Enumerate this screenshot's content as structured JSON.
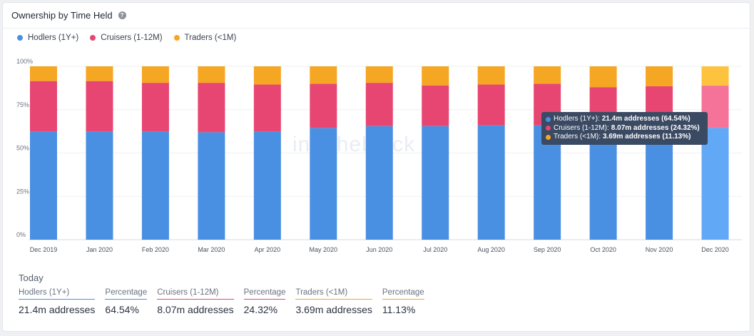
{
  "header": {
    "title": "Ownership by Time Held",
    "help_icon": "?"
  },
  "legend": [
    {
      "label": "Hodlers (1Y+)",
      "color": "#4a90e2"
    },
    {
      "label": "Cruisers (1-12M)",
      "color": "#e84672"
    },
    {
      "label": "Traders (<1M)",
      "color": "#f5a623"
    }
  ],
  "watermark": "intotheblock",
  "tooltip": {
    "rows": [
      {
        "name": "Hodlers (1Y+):",
        "value": "21.4m addresses (64.54%)",
        "color": "#4a90e2"
      },
      {
        "name": "Cruisers (1-12M):",
        "value": "8.07m addresses (24.32%)",
        "color": "#e84672"
      },
      {
        "name": "Traders (<1M):",
        "value": "3.69m addresses (11.13%)",
        "color": "#f5a623"
      }
    ]
  },
  "chart_data": {
    "type": "bar",
    "stacked": true,
    "categories": [
      "Dec 2019",
      "Jan 2020",
      "Feb 2020",
      "Mar 2020",
      "Apr 2020",
      "May 2020",
      "Jun 2020",
      "Jul 2020",
      "Aug 2020",
      "Sep 2020",
      "Oct 2020",
      "Nov 2020",
      "Dec 2020"
    ],
    "series": [
      {
        "name": "Hodlers (1Y+)",
        "color": "#4a90e2",
        "values": [
          62.5,
          62.5,
          62.5,
          62,
          62.5,
          64.5,
          65.5,
          65.5,
          66,
          66,
          66,
          66,
          64.54
        ]
      },
      {
        "name": "Cruisers (1-12M)",
        "color": "#e84672",
        "values": [
          29,
          29,
          28,
          28.5,
          27,
          25.5,
          25,
          23.5,
          23.5,
          24,
          22,
          22.5,
          24.32
        ]
      },
      {
        "name": "Traders (<1M)",
        "color": "#f5a623",
        "values": [
          8.5,
          8.5,
          9.5,
          9.5,
          10.5,
          10,
          9.5,
          11,
          10.5,
          10,
          12,
          11.5,
          11.13
        ]
      }
    ],
    "highlighted_index": 12,
    "highlight_colors": [
      "#61a8f7",
      "#f57399",
      "#fdc23e"
    ],
    "yticks": [
      "0%",
      "25%",
      "50%",
      "75%",
      "100%"
    ],
    "ylim": [
      0,
      100
    ],
    "grid": true,
    "legend_position": "top-left"
  },
  "today": {
    "label": "Today",
    "stats": [
      {
        "label": "Hodlers (1Y+)",
        "value": "21.4m addresses",
        "color": "#4a90e2"
      },
      {
        "label": "Percentage",
        "value": "64.54%",
        "color": "#4a90e2"
      },
      {
        "label": "Cruisers (1-12M)",
        "value": "8.07m addresses",
        "color": "#e84672"
      },
      {
        "label": "Percentage",
        "value": "24.32%",
        "color": "#e84672"
      },
      {
        "label": "Traders (<1M)",
        "value": "3.69m addresses",
        "color": "#f5a623"
      },
      {
        "label": "Percentage",
        "value": "11.13%",
        "color": "#f5a623"
      }
    ]
  }
}
